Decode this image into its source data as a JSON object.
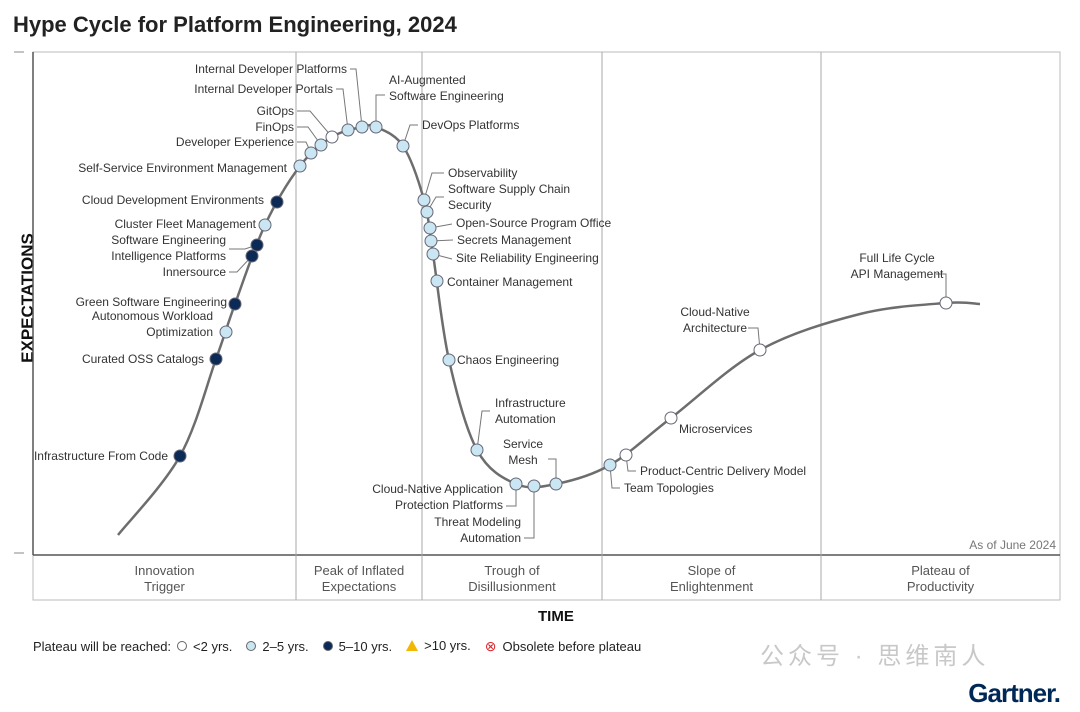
{
  "title": "Hype Cycle for Platform Engineering, 2024",
  "y_axis": "EXPECTATIONS",
  "x_axis": "TIME",
  "as_of": "As of June 2024",
  "phases": [
    "Innovation\nTrigger",
    "Peak of Inflated\nExpectations",
    "Trough of\nDisillusionment",
    "Slope of\nEnlightenment",
    "Plateau of\nProductivity"
  ],
  "colors": {
    "lt2": "#ffffff",
    "y2_5": "#c9e6f2",
    "y5_10": "#0b2a55",
    "gt10": "#f2b705",
    "obsolete": "#d9262a",
    "curve": "#6d6d6d"
  },
  "legend": {
    "label": "Plateau will be reached:",
    "items": [
      {
        "key": "lt2",
        "text": "<2 yrs."
      },
      {
        "key": "y2_5",
        "text": "2–5 yrs."
      },
      {
        "key": "y5_10",
        "text": "5–10 yrs."
      },
      {
        "key": "gt10",
        "text": ">10 yrs."
      },
      {
        "key": "obsolete",
        "text": "Obsolete before plateau"
      }
    ]
  },
  "technologies": [
    {
      "name": "Infrastructure From Code",
      "plateau": "y5_10"
    },
    {
      "name": "Curated OSS Catalogs",
      "plateau": "y5_10"
    },
    {
      "name": "Autonomous Workload\nOptimization",
      "plateau": "y2_5"
    },
    {
      "name": "Green Software Engineering",
      "plateau": "y5_10"
    },
    {
      "name": "Innersource",
      "plateau": "y5_10"
    },
    {
      "name": "Software Engineering\nIntelligence Platforms",
      "plateau": "y5_10"
    },
    {
      "name": "Cluster Fleet Management",
      "plateau": "y2_5"
    },
    {
      "name": "Cloud Development Environments",
      "plateau": "y5_10"
    },
    {
      "name": "Self-Service Environment Management",
      "plateau": "y2_5"
    },
    {
      "name": "Developer Experience",
      "plateau": "y2_5"
    },
    {
      "name": "FinOps",
      "plateau": "y2_5"
    },
    {
      "name": "GitOps",
      "plateau": "lt2"
    },
    {
      "name": "Internal Developer Portals",
      "plateau": "y2_5"
    },
    {
      "name": "Internal Developer Platforms",
      "plateau": "y2_5"
    },
    {
      "name": "AI-Augmented\nSoftware Engineering",
      "plateau": "y2_5"
    },
    {
      "name": "DevOps Platforms",
      "plateau": "y2_5"
    },
    {
      "name": "Observability",
      "plateau": "y2_5"
    },
    {
      "name": "Software Supply Chain\nSecurity",
      "plateau": "y2_5"
    },
    {
      "name": "Open-Source Program Office",
      "plateau": "y2_5"
    },
    {
      "name": "Secrets Management",
      "plateau": "y2_5"
    },
    {
      "name": "Site Reliability Engineering",
      "plateau": "y2_5"
    },
    {
      "name": "Container Management",
      "plateau": "y2_5"
    },
    {
      "name": "Chaos Engineering",
      "plateau": "y2_5"
    },
    {
      "name": "Infrastructure\nAutomation",
      "plateau": "y2_5"
    },
    {
      "name": "Cloud-Native Application\nProtection Platforms",
      "plateau": "y2_5"
    },
    {
      "name": "Threat Modeling\nAutomation",
      "plateau": "y2_5"
    },
    {
      "name": "Service\nMesh",
      "plateau": "y2_5"
    },
    {
      "name": "Team Topologies",
      "plateau": "y2_5"
    },
    {
      "name": "Product-Centric Delivery Model",
      "plateau": "lt2"
    },
    {
      "name": "Microservices",
      "plateau": "lt2"
    },
    {
      "name": "Cloud-Native\nArchitecture",
      "plateau": "lt2"
    },
    {
      "name": "Full Life Cycle\nAPI Management",
      "plateau": "lt2"
    }
  ],
  "watermark": "公众号 · 思维南人",
  "logo": "Gartner."
}
